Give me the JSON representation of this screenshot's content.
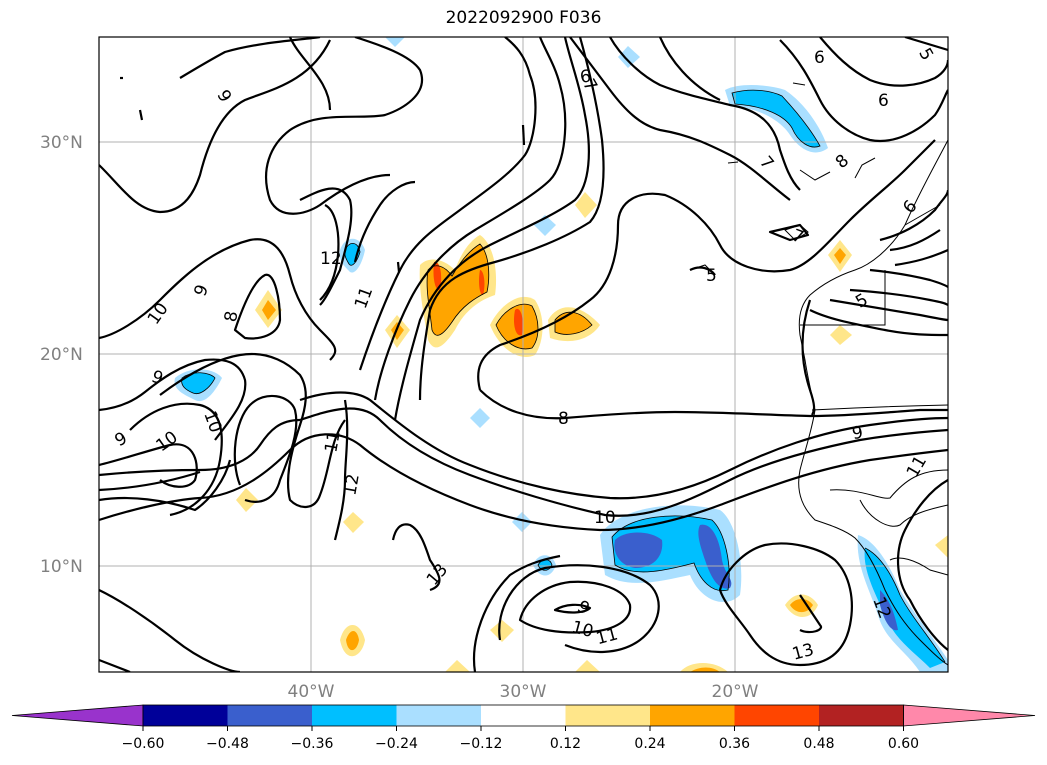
{
  "title": "2022092900 F036",
  "lat_labels": [
    "30°N",
    "20°N",
    "10°N"
  ],
  "lon_labels": [
    "40°W",
    "30°W",
    "20°W"
  ],
  "colorbar": {
    "tick_labels": [
      "−0.60",
      "−0.48",
      "−0.36",
      "−0.24",
      "−0.12",
      "0.12",
      "0.24",
      "0.36",
      "0.48",
      "0.60"
    ],
    "colors": [
      "#9933cc",
      "#000099",
      "#3a5fcd",
      "#00bfff",
      "#aadfff",
      "#ffffff",
      "#ffe68a",
      "#ffa500",
      "#ff4500",
      "#b22222",
      "#ff88aa"
    ]
  },
  "contour_labels": [
    "9",
    "10",
    "8",
    "9",
    "10",
    "9",
    "10",
    "9",
    "12",
    "11",
    "11",
    "12",
    "13",
    "6",
    "7",
    "6",
    "6",
    "5",
    "8",
    "7",
    "7",
    "5",
    "6",
    "5",
    "8",
    "9",
    "11",
    "10",
    "9",
    "10",
    "11",
    "13",
    "12"
  ]
}
